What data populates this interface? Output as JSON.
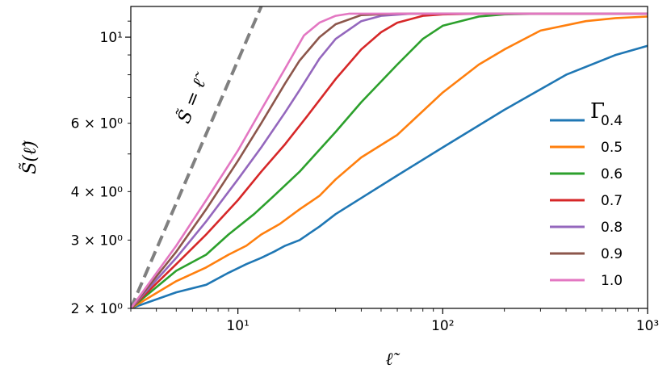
{
  "chart_data": {
    "type": "line",
    "title": "",
    "xlabel": "ℓ̃",
    "ylabel": "S̃(ℓ̃)",
    "xscale": "log",
    "yscale": "log",
    "xlim": [
      3,
      1000
    ],
    "ylim": [
      2,
      12
    ],
    "grid": false,
    "legend": {
      "title": "Γ",
      "placement": "right"
    },
    "x_ticks": [
      {
        "value": 10,
        "label": "10¹"
      },
      {
        "value": 100,
        "label": "10²"
      },
      {
        "value": 1000,
        "label": "10³"
      }
    ],
    "y_ticks": [
      {
        "value": 2,
        "label": "2 × 10⁰"
      },
      {
        "value": 3,
        "label": "3 × 10⁰"
      },
      {
        "value": 4,
        "label": "4 × 10⁰"
      },
      {
        "value": 6,
        "label": "6 × 10⁰"
      },
      {
        "value": 10,
        "label": "10¹"
      }
    ],
    "reference_line": {
      "label": "S̃ = ℓ̃",
      "color": "#808080",
      "style": "dashed",
      "x": [
        3,
        13
      ],
      "y": [
        2,
        12
      ]
    },
    "series": [
      {
        "name": "0.4",
        "color": "#1f77b4",
        "x": [
          3,
          5,
          7,
          9,
          11,
          13,
          15,
          17,
          20,
          25,
          30,
          40,
          60,
          100,
          200,
          400,
          700,
          1000
        ],
        "y": [
          2.0,
          2.2,
          2.3,
          2.47,
          2.6,
          2.7,
          2.8,
          2.9,
          3.0,
          3.25,
          3.5,
          3.85,
          4.4,
          5.2,
          6.5,
          8.0,
          9.0,
          9.5
        ]
      },
      {
        "name": "0.5",
        "color": "#ff7f0e",
        "x": [
          3,
          5,
          7,
          9,
          11,
          13,
          16,
          20,
          25,
          30,
          40,
          60,
          100,
          150,
          200,
          300,
          500,
          700,
          1000
        ],
        "y": [
          2.0,
          2.35,
          2.55,
          2.75,
          2.9,
          3.1,
          3.3,
          3.6,
          3.9,
          4.3,
          4.9,
          5.6,
          7.2,
          8.5,
          9.3,
          10.4,
          11.0,
          11.2,
          11.3
        ]
      },
      {
        "name": "0.6",
        "color": "#2ca02c",
        "x": [
          3,
          5,
          7,
          9,
          12,
          15,
          20,
          30,
          40,
          60,
          80,
          100,
          150,
          200,
          300,
          1000
        ],
        "y": [
          2.0,
          2.5,
          2.75,
          3.1,
          3.5,
          3.9,
          4.5,
          5.7,
          6.8,
          8.5,
          9.9,
          10.7,
          11.3,
          11.45,
          11.5,
          11.5
        ]
      },
      {
        "name": "0.7",
        "color": "#d62728",
        "x": [
          3,
          5,
          7,
          10,
          13,
          17,
          22,
          30,
          40,
          50,
          60,
          80,
          100,
          150,
          1000
        ],
        "y": [
          2.0,
          2.6,
          3.1,
          3.8,
          4.5,
          5.3,
          6.3,
          7.8,
          9.3,
          10.3,
          10.9,
          11.35,
          11.45,
          11.5,
          11.5
        ]
      },
      {
        "name": "0.8",
        "color": "#9467bd",
        "x": [
          3,
          5,
          7,
          10,
          13,
          17,
          20,
          25,
          30,
          40,
          50,
          70,
          100,
          1000
        ],
        "y": [
          2.0,
          2.7,
          3.35,
          4.3,
          5.2,
          6.4,
          7.3,
          8.8,
          9.9,
          11.0,
          11.35,
          11.5,
          11.5,
          11.5
        ]
      },
      {
        "name": "0.9",
        "color": "#8c564b",
        "x": [
          3,
          5,
          7,
          10,
          13,
          17,
          20,
          25,
          30,
          40,
          60,
          1000
        ],
        "y": [
          2.0,
          2.8,
          3.6,
          4.8,
          6.0,
          7.6,
          8.7,
          10.0,
          10.8,
          11.4,
          11.5,
          11.5
        ]
      },
      {
        "name": "1.0",
        "color": "#e377c2",
        "x": [
          3,
          5,
          7,
          10,
          13,
          17,
          21,
          25,
          30,
          35,
          40,
          1000
        ],
        "y": [
          2.0,
          2.9,
          3.8,
          5.1,
          6.5,
          8.3,
          10.1,
          10.9,
          11.35,
          11.5,
          11.5,
          11.5
        ]
      }
    ]
  }
}
